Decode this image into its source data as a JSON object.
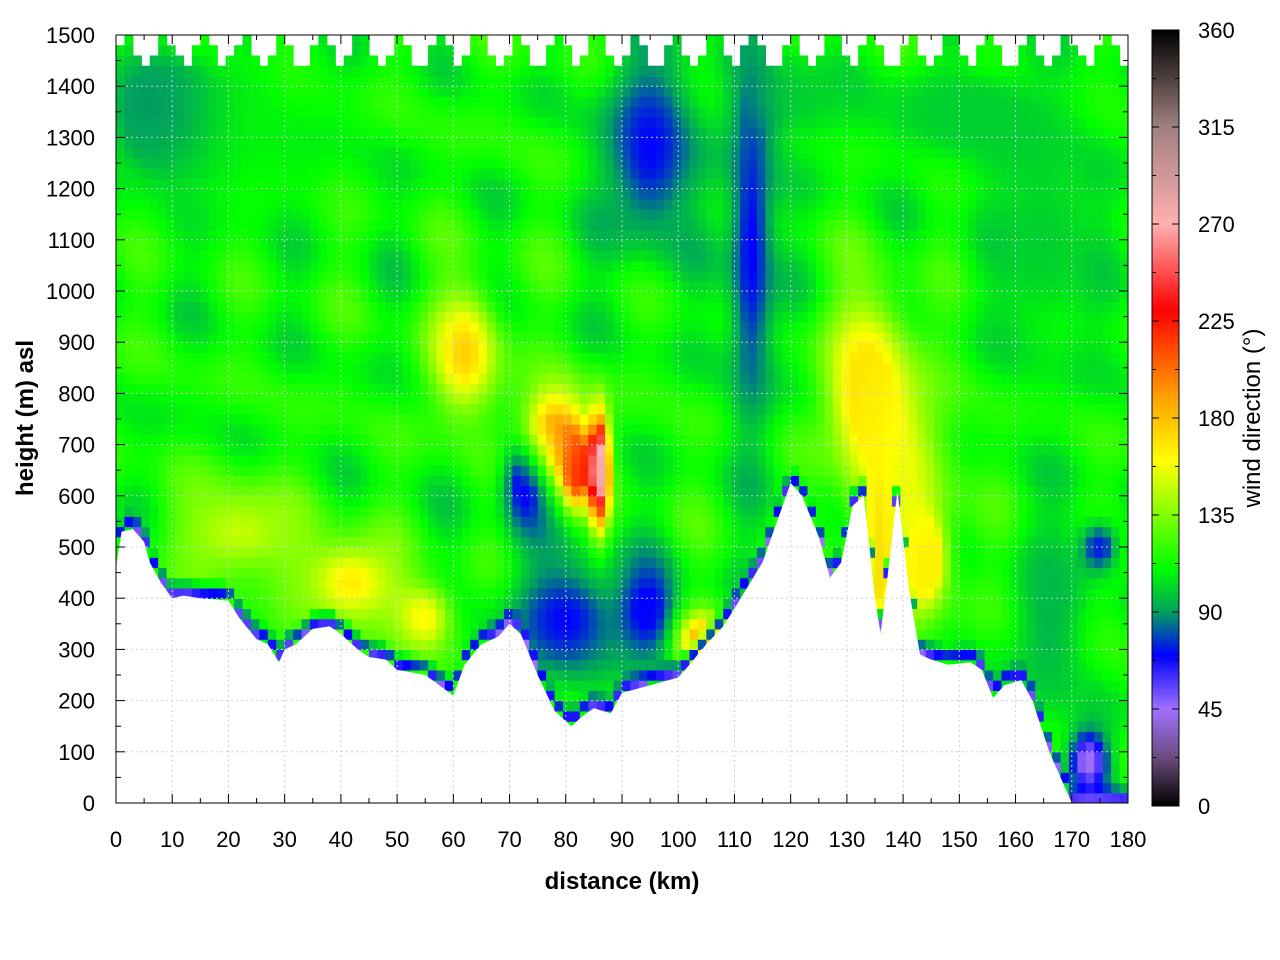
{
  "chart_data": {
    "type": "heatmap",
    "xlabel": "distance (km)",
    "ylabel": "height (m) asl",
    "colorbar_label": "wind direction (°)",
    "xlim": [
      0,
      180
    ],
    "ylim": [
      0,
      1500
    ],
    "zlim": [
      0,
      360
    ],
    "x_ticks": [
      0,
      10,
      20,
      30,
      40,
      50,
      60,
      70,
      80,
      90,
      100,
      110,
      120,
      130,
      140,
      150,
      160,
      170,
      180
    ],
    "y_ticks": [
      0,
      100,
      200,
      300,
      400,
      500,
      600,
      700,
      800,
      900,
      1000,
      1100,
      1200,
      1300,
      1400,
      1500
    ],
    "colorbar_ticks": [
      0,
      45,
      90,
      135,
      180,
      225,
      270,
      315,
      360
    ],
    "grid": true,
    "colormap": [
      {
        "value": 0,
        "color": "#000000"
      },
      {
        "value": 22,
        "color": "#6a4a7a"
      },
      {
        "value": 45,
        "color": "#a070ff"
      },
      {
        "value": 70,
        "color": "#0000ff"
      },
      {
        "value": 90,
        "color": "#00a060"
      },
      {
        "value": 110,
        "color": "#00ff00"
      },
      {
        "value": 135,
        "color": "#80ff00"
      },
      {
        "value": 160,
        "color": "#ffff00"
      },
      {
        "value": 190,
        "color": "#ffa000"
      },
      {
        "value": 230,
        "color": "#ff0000"
      },
      {
        "value": 270,
        "color": "#ffb0b0"
      },
      {
        "value": 315,
        "color": "#a08080"
      },
      {
        "value": 360,
        "color": "#000000"
      }
    ],
    "terrain_profile": {
      "distance_km": [
        0,
        1,
        3,
        5,
        6,
        8,
        10,
        12,
        15,
        20,
        22,
        25,
        27,
        29,
        30,
        32,
        35,
        38,
        40,
        43,
        45,
        48,
        50,
        55,
        60,
        62,
        65,
        68,
        70,
        72,
        75,
        78,
        81,
        83,
        85,
        88,
        90,
        95,
        100,
        102,
        105,
        108,
        110,
        115,
        120,
        122,
        125,
        127,
        129,
        131,
        133,
        135,
        136,
        137,
        139,
        141,
        143,
        145,
        148,
        152,
        154,
        156,
        158,
        161,
        163,
        166,
        168,
        170,
        172,
        175,
        178,
        180
      ],
      "height_m": [
        460,
        530,
        535,
        510,
        470,
        430,
        400,
        405,
        400,
        395,
        360,
        320,
        310,
        275,
        300,
        310,
        340,
        345,
        330,
        300,
        285,
        280,
        260,
        250,
        210,
        270,
        310,
        325,
        350,
        330,
        250,
        180,
        150,
        170,
        185,
        175,
        215,
        230,
        245,
        270,
        310,
        345,
        380,
        470,
        625,
        600,
        520,
        440,
        470,
        580,
        600,
        400,
        330,
        420,
        610,
        420,
        290,
        280,
        270,
        275,
        260,
        205,
        230,
        240,
        200,
        100,
        50,
        0,
        0,
        0,
        0,
        0
      ]
    },
    "features": [
      {
        "x": 20,
        "y": 1300,
        "rx": 25,
        "ry": 250,
        "value": 108
      },
      {
        "x": 8,
        "y": 1350,
        "rx": 10,
        "ry": 130,
        "value": 78
      },
      {
        "x": 22,
        "y": 530,
        "rx": 14,
        "ry": 120,
        "value": 148
      },
      {
        "x": 42,
        "y": 430,
        "rx": 10,
        "ry": 100,
        "value": 165
      },
      {
        "x": 55,
        "y": 360,
        "rx": 6,
        "ry": 80,
        "value": 160
      },
      {
        "x": 62,
        "y": 880,
        "rx": 7,
        "ry": 140,
        "value": 175
      },
      {
        "x": 78,
        "y": 720,
        "rx": 7,
        "ry": 110,
        "value": 195
      },
      {
        "x": 82,
        "y": 650,
        "rx": 3,
        "ry": 80,
        "value": 225
      },
      {
        "x": 73,
        "y": 630,
        "rx": 5,
        "ry": 110,
        "value": 55
      },
      {
        "x": 80,
        "y": 360,
        "rx": 12,
        "ry": 140,
        "value": 70
      },
      {
        "x": 86,
        "y": 650,
        "rx": 2,
        "ry": 120,
        "value": 285
      },
      {
        "x": 95,
        "y": 380,
        "rx": 6,
        "ry": 120,
        "value": 70
      },
      {
        "x": 104,
        "y": 320,
        "rx": 5,
        "ry": 60,
        "value": 190
      },
      {
        "x": 95,
        "y": 1280,
        "rx": 10,
        "ry": 230,
        "value": 70
      },
      {
        "x": 113,
        "y": 1080,
        "rx": 5,
        "ry": 420,
        "value": 70
      },
      {
        "x": 120,
        "y": 1380,
        "rx": 12,
        "ry": 120,
        "value": 100
      },
      {
        "x": 133,
        "y": 820,
        "rx": 8,
        "ry": 200,
        "value": 170
      },
      {
        "x": 136,
        "y": 500,
        "rx": 2,
        "ry": 150,
        "value": 180
      },
      {
        "x": 144,
        "y": 470,
        "rx": 4,
        "ry": 90,
        "value": 170
      },
      {
        "x": 140,
        "y": 600,
        "rx": 10,
        "ry": 300,
        "value": 155
      },
      {
        "x": 150,
        "y": 1350,
        "rx": 20,
        "ry": 120,
        "value": 100
      },
      {
        "x": 175,
        "y": 500,
        "rx": 4,
        "ry": 60,
        "value": 72
      },
      {
        "x": 166,
        "y": 350,
        "rx": 8,
        "ry": 250,
        "value": 95
      },
      {
        "x": 173,
        "y": 80,
        "rx": 4,
        "ry": 70,
        "value": 40
      },
      {
        "x": 165,
        "y": 1100,
        "rx": 15,
        "ry": 300,
        "value": 100
      }
    ]
  }
}
